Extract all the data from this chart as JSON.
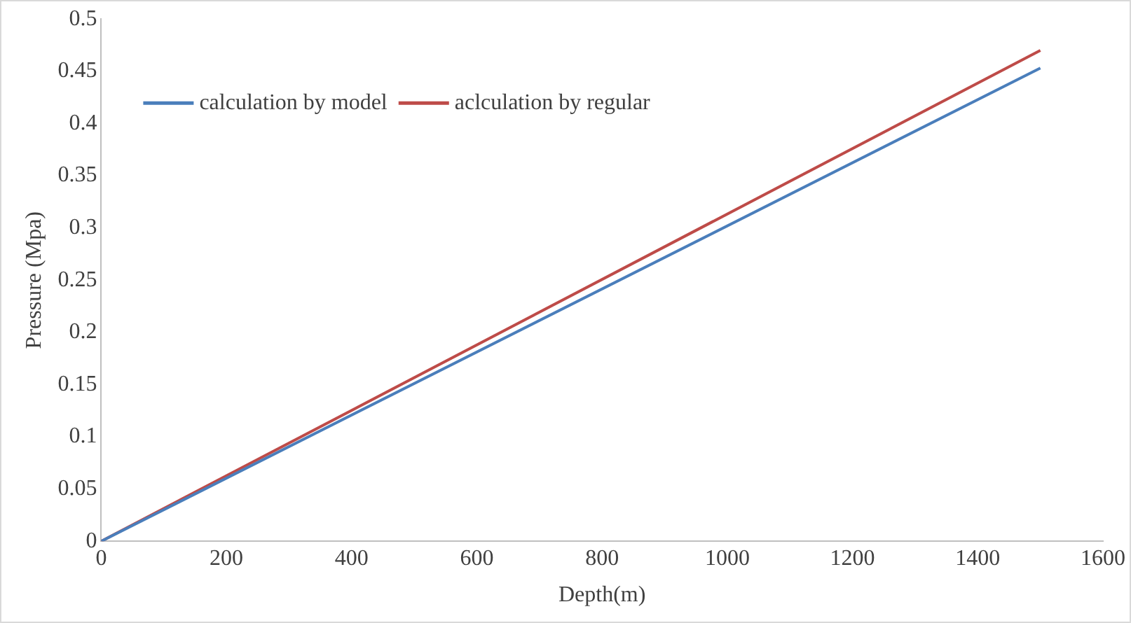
{
  "chart_data": {
    "type": "line",
    "xlabel": "Depth(m)",
    "ylabel": "Pressure (Mpa)",
    "xlim": [
      0,
      1600
    ],
    "xticks": [
      0,
      200,
      400,
      600,
      800,
      1000,
      1200,
      1400,
      1600
    ],
    "ylim": [
      0,
      0.5
    ],
    "yticks": [
      0,
      0.05,
      0.1,
      0.15,
      0.2,
      0.25,
      0.3,
      0.35,
      0.4,
      0.45,
      0.5
    ],
    "x": [
      0,
      1500
    ],
    "grid": false,
    "legend": "top left",
    "marker": "none",
    "line_style": "solid",
    "series": [
      {
        "name": "calculation by model",
        "color": "#4a7ebb",
        "values": [
          0,
          0.453
        ]
      },
      {
        "name": "aclculation by regular",
        "color": "#be4b48",
        "values": [
          0,
          0.47
        ]
      }
    ]
  }
}
